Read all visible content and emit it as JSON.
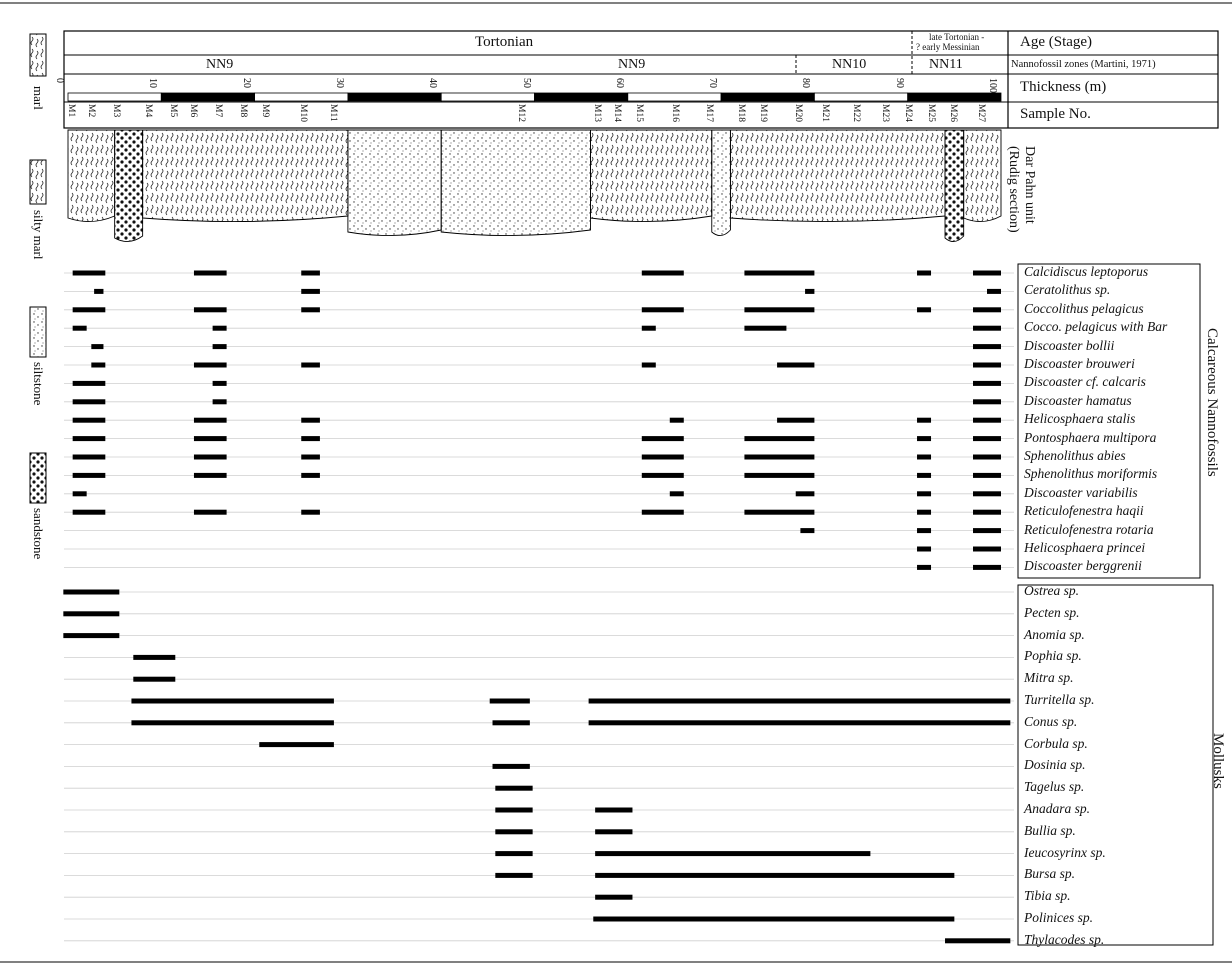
{
  "header": {
    "age_stage": "Tortonian",
    "age_late": "late Tortonian -",
    "age_late2": "? early Messinian",
    "zones": [
      "NN9",
      "NN9",
      "NN10",
      "NN11"
    ],
    "thickness_ticks": [
      "0",
      "10",
      "20",
      "30",
      "40",
      "50",
      "60",
      "70",
      "80",
      "90",
      "100"
    ]
  },
  "right_labels": {
    "age": "Age (Stage)",
    "zones": "Nannofossil zones (Martini, 1971)",
    "thickness": "Thickness (m)",
    "sample": "Sample No.",
    "unit1": "Dar Pahn unit",
    "unit2": "(Rudig section)",
    "group_nanno": "Calcareous Nannofossils",
    "group_mollusks": "Mollusks"
  },
  "legend": [
    "marl",
    "silty marl",
    "siltstone",
    "sandstone"
  ],
  "samples": [
    "M1",
    "M2",
    "M3",
    "M4",
    "M5",
    "M6",
    "M7",
    "M8",
    "M9",
    "M10",
    "M11",
    "M12",
    "M13",
    "M14",
    "M15",
    "M16",
    "M17",
    "M18",
    "M19",
    "M20",
    "M21",
    "M22",
    "M23",
    "M24",
    "M25",
    "M26",
    "M27"
  ],
  "lithology": [
    {
      "from": 0,
      "to": 5,
      "type": "marl"
    },
    {
      "from": 5,
      "to": 8,
      "type": "sandstone"
    },
    {
      "from": 8,
      "to": 30,
      "type": "marl"
    },
    {
      "from": 30,
      "to": 40,
      "type": "siltstone"
    },
    {
      "from": 40,
      "to": 56,
      "type": "siltstone"
    },
    {
      "from": 56,
      "to": 69,
      "type": "marl"
    },
    {
      "from": 69,
      "to": 71,
      "type": "siltstone"
    },
    {
      "from": 71,
      "to": 94,
      "type": "marl"
    },
    {
      "from": 94,
      "to": 96,
      "type": "sandstone"
    },
    {
      "from": 96,
      "to": 100,
      "type": "marl"
    }
  ],
  "nannofossils": [
    {
      "name": "Calcidiscus leptoporus",
      "ranges": [
        [
          0.5,
          4
        ],
        [
          13.5,
          17
        ],
        [
          25,
          27
        ],
        [
          61.5,
          66
        ],
        [
          72.5,
          80
        ],
        [
          91,
          92.5
        ],
        [
          97,
          100
        ]
      ]
    },
    {
      "name": "Ceratolithus sp.",
      "ranges": [
        [
          2.8,
          3.8
        ],
        [
          25,
          27
        ],
        [
          79,
          80
        ],
        [
          98.5,
          100
        ]
      ]
    },
    {
      "name": "Coccolithus pelagicus",
      "ranges": [
        [
          0.5,
          4
        ],
        [
          13.5,
          17
        ],
        [
          25,
          27
        ],
        [
          61.5,
          66
        ],
        [
          72.5,
          80
        ],
        [
          91,
          92.5
        ],
        [
          97,
          100
        ]
      ]
    },
    {
      "name": "Cocco. pelagicus with Bar",
      "ranges": [
        [
          0.5,
          2
        ],
        [
          15.5,
          17
        ],
        [
          61.5,
          63
        ],
        [
          72.5,
          77
        ],
        [
          97,
          100
        ]
      ]
    },
    {
      "name": "Discoaster bollii",
      "ranges": [
        [
          2.5,
          3.8
        ],
        [
          15.5,
          17
        ],
        [
          97,
          100
        ]
      ]
    },
    {
      "name": "Discoaster brouweri",
      "ranges": [
        [
          2.5,
          4
        ],
        [
          13.5,
          17
        ],
        [
          25,
          27
        ],
        [
          61.5,
          63
        ],
        [
          76,
          80
        ],
        [
          97,
          100
        ]
      ]
    },
    {
      "name": "Discoaster cf. calcaris",
      "ranges": [
        [
          0.5,
          4
        ],
        [
          15.5,
          17
        ],
        [
          97,
          100
        ]
      ]
    },
    {
      "name": "Discoaster hamatus",
      "ranges": [
        [
          0.5,
          4
        ],
        [
          15.5,
          17
        ],
        [
          97,
          100
        ]
      ]
    },
    {
      "name": "Helicosphaera stalis",
      "ranges": [
        [
          0.5,
          4
        ],
        [
          13.5,
          17
        ],
        [
          25,
          27
        ],
        [
          64.5,
          66
        ],
        [
          76,
          80
        ],
        [
          91,
          92.5
        ],
        [
          97,
          100
        ]
      ]
    },
    {
      "name": "Pontosphaera multipora",
      "ranges": [
        [
          0.5,
          4
        ],
        [
          13.5,
          17
        ],
        [
          25,
          27
        ],
        [
          61.5,
          66
        ],
        [
          72.5,
          80
        ],
        [
          91,
          92.5
        ],
        [
          97,
          100
        ]
      ]
    },
    {
      "name": "Sphenolithus abies",
      "ranges": [
        [
          0.5,
          4
        ],
        [
          13.5,
          17
        ],
        [
          25,
          27
        ],
        [
          61.5,
          66
        ],
        [
          72.5,
          80
        ],
        [
          91,
          92.5
        ],
        [
          97,
          100
        ]
      ]
    },
    {
      "name": "Sphenolithus moriformis",
      "ranges": [
        [
          0.5,
          4
        ],
        [
          13.5,
          17
        ],
        [
          25,
          27
        ],
        [
          61.5,
          66
        ],
        [
          72.5,
          80
        ],
        [
          91,
          92.5
        ],
        [
          97,
          100
        ]
      ]
    },
    {
      "name": "Discoaster variabilis",
      "ranges": [
        [
          0.5,
          2
        ],
        [
          64.5,
          66
        ],
        [
          78,
          80
        ],
        [
          91,
          92.5
        ],
        [
          97,
          100
        ]
      ]
    },
    {
      "name": "Reticulofenestra haqii",
      "ranges": [
        [
          0.5,
          4
        ],
        [
          13.5,
          17
        ],
        [
          25,
          27
        ],
        [
          61.5,
          66
        ],
        [
          72.5,
          80
        ],
        [
          91,
          92.5
        ],
        [
          97,
          100
        ]
      ]
    },
    {
      "name": "Reticulofenestra rotaria",
      "ranges": [
        [
          78.5,
          80
        ],
        [
          91,
          92.5
        ],
        [
          97,
          100
        ]
      ]
    },
    {
      "name": "Helicosphaera princei",
      "ranges": [
        [
          91,
          92.5
        ],
        [
          97,
          100
        ]
      ]
    },
    {
      "name": "Discoaster berggrenii",
      "ranges": [
        [
          91,
          92.5
        ],
        [
          97,
          100
        ]
      ]
    }
  ],
  "mollusks": [
    {
      "name": "Ostrea sp.",
      "ranges": [
        [
          -0.5,
          5.5
        ]
      ]
    },
    {
      "name": "Pecten sp.",
      "ranges": [
        [
          -0.5,
          5.5
        ]
      ]
    },
    {
      "name": "Anomia sp.",
      "ranges": [
        [
          -0.5,
          5.5
        ]
      ]
    },
    {
      "name": "Pophia sp.",
      "ranges": [
        [
          7,
          11.5
        ]
      ]
    },
    {
      "name": "Mitra sp.",
      "ranges": [
        [
          7,
          11.5
        ]
      ]
    },
    {
      "name": "Turritella sp.",
      "ranges": [
        [
          6.8,
          28.5
        ],
        [
          45.2,
          49.5
        ],
        [
          55.8,
          101
        ]
      ]
    },
    {
      "name": "Conus sp.",
      "ranges": [
        [
          6.8,
          28.5
        ],
        [
          45.5,
          49.5
        ],
        [
          55.8,
          101
        ]
      ]
    },
    {
      "name": "Corbula sp.",
      "ranges": [
        [
          20.5,
          28.5
        ]
      ]
    },
    {
      "name": "Dosinia sp.",
      "ranges": [
        [
          45.5,
          49.5
        ]
      ]
    },
    {
      "name": "Tagelus sp.",
      "ranges": [
        [
          45.8,
          49.8
        ]
      ]
    },
    {
      "name": "Anadara sp.",
      "ranges": [
        [
          45.8,
          49.8
        ],
        [
          56.5,
          60.5
        ]
      ]
    },
    {
      "name": "Bullia sp.",
      "ranges": [
        [
          45.8,
          49.8
        ],
        [
          56.5,
          60.5
        ]
      ]
    },
    {
      "name": "Ieucosyrinx sp.",
      "ranges": [
        [
          45.8,
          49.8
        ],
        [
          56.5,
          86
        ]
      ]
    },
    {
      "name": "Bursa sp.",
      "ranges": [
        [
          45.8,
          49.8
        ],
        [
          56.5,
          95
        ]
      ]
    },
    {
      "name": "Tibia sp.",
      "ranges": [
        [
          56.5,
          60.5
        ]
      ]
    },
    {
      "name": "Polinices sp.",
      "ranges": [
        [
          56.3,
          95
        ]
      ]
    },
    {
      "name": "Thylacodes sp.",
      "ranges": [
        [
          94,
          101
        ]
      ]
    }
  ]
}
